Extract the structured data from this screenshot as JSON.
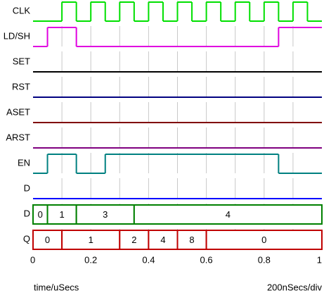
{
  "chart_data": {
    "type": "timing",
    "x_label": "time/uSecs",
    "x_scale_label": "200nSecs/div",
    "xlim": [
      0,
      1
    ],
    "xticks": [
      0,
      0.2,
      0.4,
      0.6,
      0.8,
      1
    ],
    "xgrid": [
      0.1,
      0.2,
      0.3,
      0.4,
      0.5,
      0.6,
      0.7,
      0.8,
      0.9
    ],
    "series": [
      {
        "name": "CLK",
        "kind": "logic",
        "color": "#00e000",
        "x": [
          0,
          0.1,
          0.15,
          0.2,
          0.25,
          0.3,
          0.35,
          0.4,
          0.45,
          0.5,
          0.55,
          0.6,
          0.65,
          0.7,
          0.75,
          0.8,
          0.85,
          0.9,
          0.95
        ],
        "values": [
          0,
          1,
          0,
          1,
          0,
          1,
          0,
          1,
          0,
          1,
          0,
          1,
          0,
          1,
          0,
          1,
          0,
          1,
          0
        ]
      },
      {
        "name": "LD/SH",
        "kind": "logic",
        "color": "#e000e0",
        "x": [
          0,
          0.05,
          0.15,
          0.85
        ],
        "values": [
          0,
          1,
          0,
          1
        ]
      },
      {
        "name": "SET",
        "kind": "logic",
        "color": "#000000",
        "x": [
          0
        ],
        "values": [
          0
        ]
      },
      {
        "name": "RST",
        "kind": "logic",
        "color": "#000080",
        "x": [
          0
        ],
        "values": [
          0
        ]
      },
      {
        "name": "ASET",
        "kind": "logic",
        "color": "#800000",
        "x": [
          0
        ],
        "values": [
          0
        ]
      },
      {
        "name": "ARST",
        "kind": "logic",
        "color": "#800080",
        "x": [
          0
        ],
        "values": [
          0
        ]
      },
      {
        "name": "EN",
        "kind": "logic",
        "color": "#008080",
        "x": [
          0,
          0.05,
          0.15,
          0.25,
          0.85
        ],
        "values": [
          0,
          1,
          0,
          1,
          0
        ]
      },
      {
        "name": "D",
        "kind": "logic",
        "color": "#0000ff",
        "x": [
          0
        ],
        "values": [
          0
        ]
      },
      {
        "name": "D",
        "kind": "bus",
        "color": "#008000",
        "x": [
          0,
          0.05,
          0.15,
          0.35
        ],
        "values": [
          0,
          1,
          3,
          4
        ]
      },
      {
        "name": "Q",
        "kind": "bus",
        "color": "#c00000",
        "x": [
          0,
          0.1,
          0.3,
          0.4,
          0.5,
          0.6
        ],
        "values": [
          0,
          1,
          2,
          4,
          8,
          0
        ]
      }
    ]
  }
}
